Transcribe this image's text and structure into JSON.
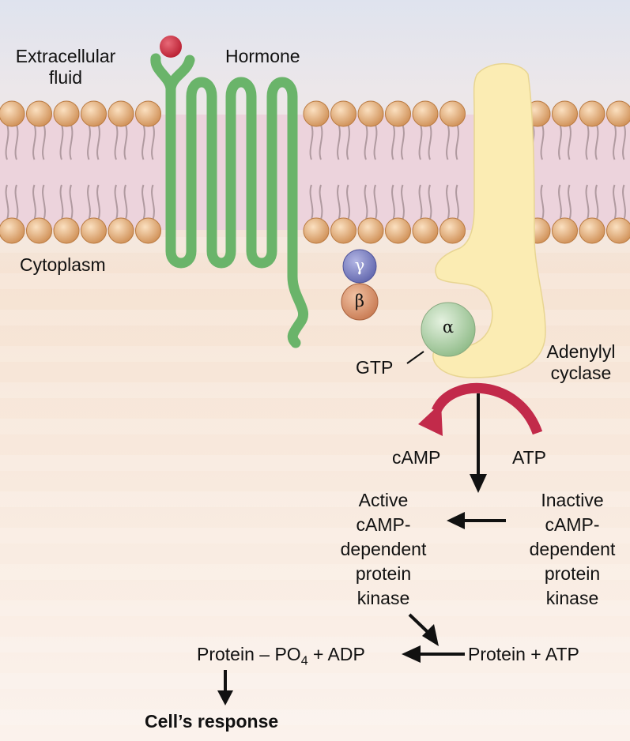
{
  "labels": {
    "extracellular": [
      "Extracellular",
      "fluid"
    ],
    "hormone": "Hormone",
    "cytoplasm": "Cytoplasm",
    "gamma": "γ",
    "beta": "β",
    "alpha": "α",
    "gtp": "GTP",
    "adenylyl_cyclase": [
      "Adenylyl",
      "cyclase"
    ],
    "camp": "cAMP",
    "atp": "ATP",
    "active_kinase": [
      "Active",
      "cAMP-",
      "dependent",
      "protein",
      "kinase"
    ],
    "inactive_kinase": [
      "Inactive",
      "cAMP-",
      "dependent",
      "protein",
      "kinase"
    ],
    "protein_po4_prefix": "Protein – PO",
    "protein_po4_subscript": "4",
    "protein_po4_suffix": " + ADP",
    "protein_atp": "Protein + ATP",
    "cells_response": "Cell’s response"
  },
  "colors": {
    "receptor": "#6ab46a",
    "hormone": "#c72538",
    "phospholipid_head": "#e0aa72",
    "lipid_tail": "#b09aa0",
    "membrane_band": "#ecd3dc",
    "adenylyl_cyclase": "#fbecb3",
    "alpha_subunit": "#b6d6ae",
    "beta_subunit": "#d98f68",
    "gamma_subunit": "#7b7fbd",
    "conversion_arrow": "#c22a4a"
  }
}
